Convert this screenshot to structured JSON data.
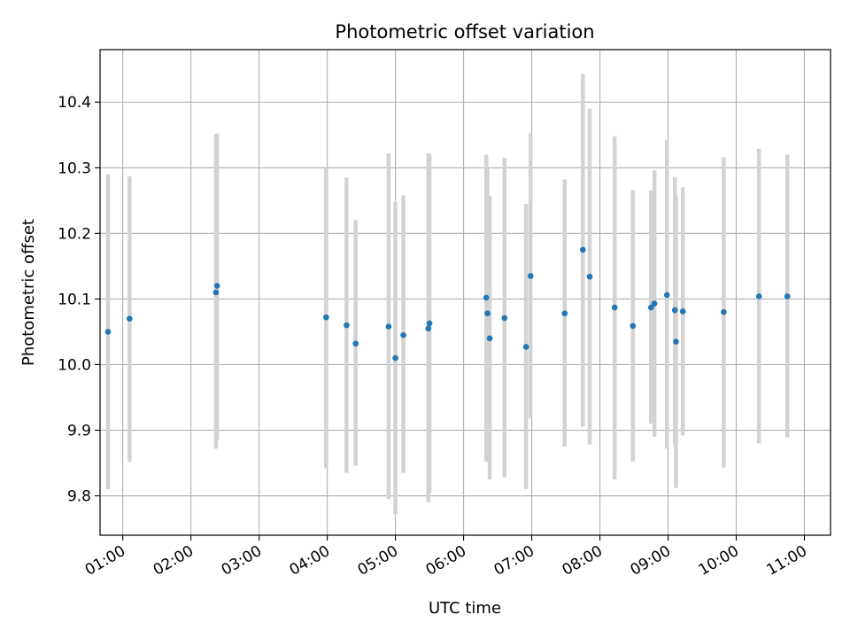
{
  "chart_data": {
    "type": "scatter",
    "title": "Photometric offset variation",
    "xlabel": "UTC time",
    "ylabel": "Photometric offset",
    "grid": true,
    "xlim": [
      "00:40",
      "11:23"
    ],
    "ylim": [
      9.74,
      10.48
    ],
    "x_ticks": [
      "01:00",
      "02:00",
      "03:00",
      "04:00",
      "05:00",
      "06:00",
      "07:00",
      "08:00",
      "09:00",
      "10:00",
      "11:00"
    ],
    "y_ticks": [
      "9.8",
      "9.9",
      "10.0",
      "10.1",
      "10.2",
      "10.3",
      "10.4"
    ],
    "colors": {
      "points": "#1f77b4",
      "errorbars": "#d3d3d3",
      "grid": "#b0b0b0"
    },
    "points": [
      {
        "x": "00:47",
        "y": 10.05,
        "low": 9.81,
        "high": 10.29
      },
      {
        "x": "01:06",
        "y": 10.07,
        "low": 9.852,
        "high": 10.287
      },
      {
        "x": "02:22",
        "y": 10.11,
        "low": 9.872,
        "high": 10.35
      },
      {
        "x": "02:23",
        "y": 10.12,
        "low": 9.886,
        "high": 10.352
      },
      {
        "x": "03:59",
        "y": 10.072,
        "low": 9.842,
        "high": 10.3
      },
      {
        "x": "04:17",
        "y": 10.06,
        "low": 9.835,
        "high": 10.285
      },
      {
        "x": "04:25",
        "y": 10.032,
        "low": 9.846,
        "high": 10.22
      },
      {
        "x": "04:54",
        "y": 10.058,
        "low": 9.795,
        "high": 10.322
      },
      {
        "x": "05:00",
        "y": 10.01,
        "low": 9.772,
        "high": 10.248
      },
      {
        "x": "05:07",
        "y": 10.045,
        "low": 9.835,
        "high": 10.258
      },
      {
        "x": "05:29",
        "y": 10.055,
        "low": 9.79,
        "high": 10.322
      },
      {
        "x": "05:30",
        "y": 10.063,
        "low": 9.805,
        "high": 10.32
      },
      {
        "x": "06:20",
        "y": 10.102,
        "low": 9.852,
        "high": 10.32
      },
      {
        "x": "06:21",
        "y": 10.078,
        "low": 9.855,
        "high": 10.3
      },
      {
        "x": "06:23",
        "y": 10.04,
        "low": 9.825,
        "high": 10.257
      },
      {
        "x": "06:36",
        "y": 10.071,
        "low": 9.828,
        "high": 10.315
      },
      {
        "x": "06:55",
        "y": 10.027,
        "low": 9.81,
        "high": 10.245
      },
      {
        "x": "06:59",
        "y": 10.135,
        "low": 9.918,
        "high": 10.352
      },
      {
        "x": "07:29",
        "y": 10.078,
        "low": 9.875,
        "high": 10.282
      },
      {
        "x": "07:45",
        "y": 10.175,
        "low": 9.905,
        "high": 10.443
      },
      {
        "x": "07:51",
        "y": 10.134,
        "low": 9.878,
        "high": 10.39
      },
      {
        "x": "08:13",
        "y": 10.087,
        "low": 9.825,
        "high": 10.348
      },
      {
        "x": "08:29",
        "y": 10.059,
        "low": 9.852,
        "high": 10.266
      },
      {
        "x": "08:45",
        "y": 10.087,
        "low": 9.91,
        "high": 10.265
      },
      {
        "x": "08:48",
        "y": 10.093,
        "low": 9.89,
        "high": 10.296
      },
      {
        "x": "08:59",
        "y": 10.106,
        "low": 9.872,
        "high": 10.342
      },
      {
        "x": "09:06",
        "y": 10.083,
        "low": 9.878,
        "high": 10.286
      },
      {
        "x": "09:07",
        "y": 10.035,
        "low": 9.812,
        "high": 10.258
      },
      {
        "x": "09:13",
        "y": 10.081,
        "low": 9.892,
        "high": 10.27
      },
      {
        "x": "09:49",
        "y": 10.08,
        "low": 9.843,
        "high": 10.316
      },
      {
        "x": "10:20",
        "y": 10.104,
        "low": 9.88,
        "high": 10.329
      },
      {
        "x": "10:45",
        "y": 10.104,
        "low": 9.889,
        "high": 10.32
      }
    ]
  }
}
